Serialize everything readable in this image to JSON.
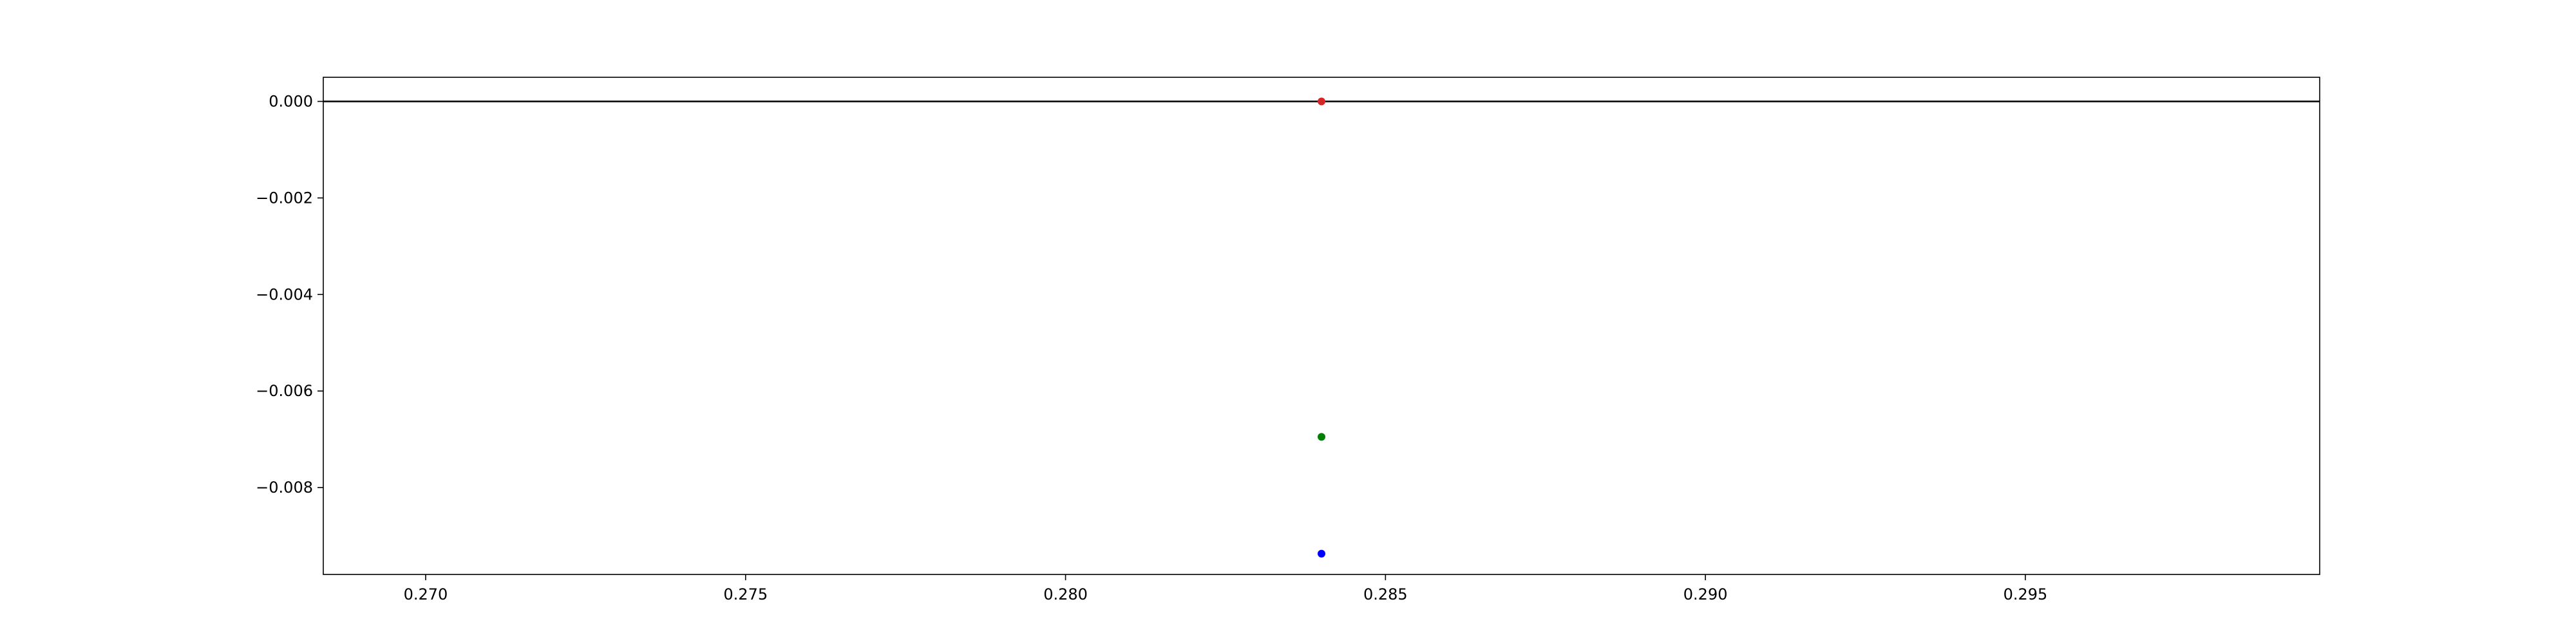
{
  "chart_data": {
    "type": "scatter",
    "title": "",
    "xlabel": "",
    "ylabel": "",
    "xlim": [
      0.2684,
      0.2996
    ],
    "ylim": [
      -0.0098,
      0.0005
    ],
    "grid": false,
    "legend": "none",
    "x_ticks": [
      0.27,
      0.275,
      0.28,
      0.285,
      0.29,
      0.295
    ],
    "x_tick_labels": [
      "0.270",
      "0.275",
      "0.280",
      "0.285",
      "0.290",
      "0.295"
    ],
    "y_ticks": [
      0.0,
      -0.002,
      -0.004,
      -0.006,
      -0.008
    ],
    "y_tick_labels": [
      "0.000",
      "−0.002",
      "−0.004",
      "−0.006",
      "−0.008"
    ],
    "reference_line": {
      "y": 0.0,
      "color": "#000000"
    },
    "series": [
      {
        "x": [
          0.284
        ],
        "y": [
          0.0
        ],
        "color": "#d62728"
      },
      {
        "x": [
          0.284
        ],
        "y": [
          -0.00695
        ],
        "color": "#008000"
      },
      {
        "x": [
          0.284
        ],
        "y": [
          -0.00937
        ],
        "color": "#0000ff"
      }
    ]
  }
}
